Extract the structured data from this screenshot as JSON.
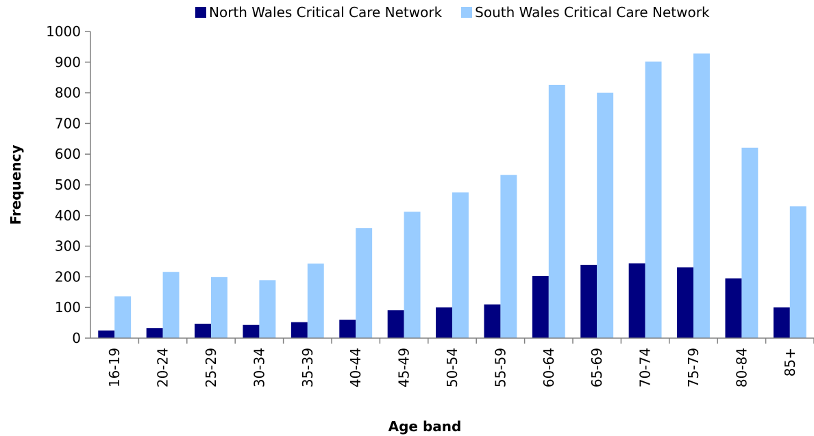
{
  "chart_data": {
    "type": "bar",
    "title": "",
    "xlabel": "Age band",
    "ylabel": "Frequency",
    "ylim": [
      0,
      1000
    ],
    "yticks": [
      0,
      100,
      200,
      300,
      400,
      500,
      600,
      700,
      800,
      900,
      1000
    ],
    "grid": false,
    "legend_position": "top",
    "categories": [
      "16-19",
      "20-24",
      "25-29",
      "30-34",
      "35-39",
      "40-44",
      "45-49",
      "50-54",
      "55-59",
      "60-64",
      "65-69",
      "70-74",
      "75-79",
      "80-84",
      "85+"
    ],
    "series": [
      {
        "name": "North Wales Critical Care Network",
        "color": "#000080",
        "values": [
          25,
          33,
          47,
          43,
          52,
          60,
          91,
          100,
          110,
          203,
          239,
          244,
          231,
          195,
          100
        ]
      },
      {
        "name": "South Wales Critical Care Network",
        "color": "#99CCFF",
        "values": [
          136,
          216,
          199,
          189,
          243,
          359,
          412,
          475,
          532,
          826,
          800,
          902,
          928,
          621,
          430
        ]
      }
    ]
  }
}
